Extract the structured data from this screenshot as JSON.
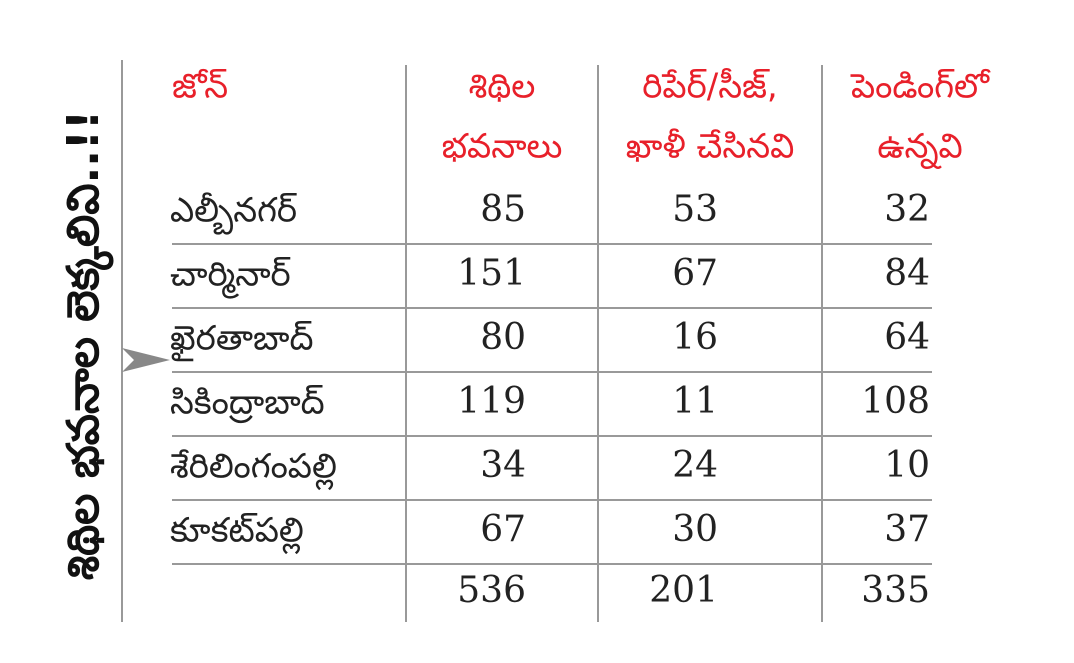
{
  "title": "శిథిల భవనాల లెక్కలివి..!!",
  "table": {
    "headers": [
      [
        "జోన్"
      ],
      [
        "శిథిల",
        "భవనాలు"
      ],
      [
        "రిపేర్/సీజ్,",
        "ఖాళీ చేసినవి"
      ],
      [
        "పెండింగ్‌లో",
        "ఉన్నవి"
      ]
    ],
    "rows": [
      [
        "ఎల్బీనగర్",
        85,
        53,
        32
      ],
      [
        "చార్మినార్",
        151,
        67,
        84
      ],
      [
        "ఖైరతాబాద్",
        80,
        16,
        64
      ],
      [
        "సికింద్రాబాద్",
        119,
        11,
        108
      ],
      [
        "శేరిలింగంపల్లి",
        34,
        24,
        10
      ],
      [
        "కూకట్‌పల్లి",
        67,
        30,
        37
      ]
    ],
    "totals": [
      536,
      201,
      335
    ]
  }
}
